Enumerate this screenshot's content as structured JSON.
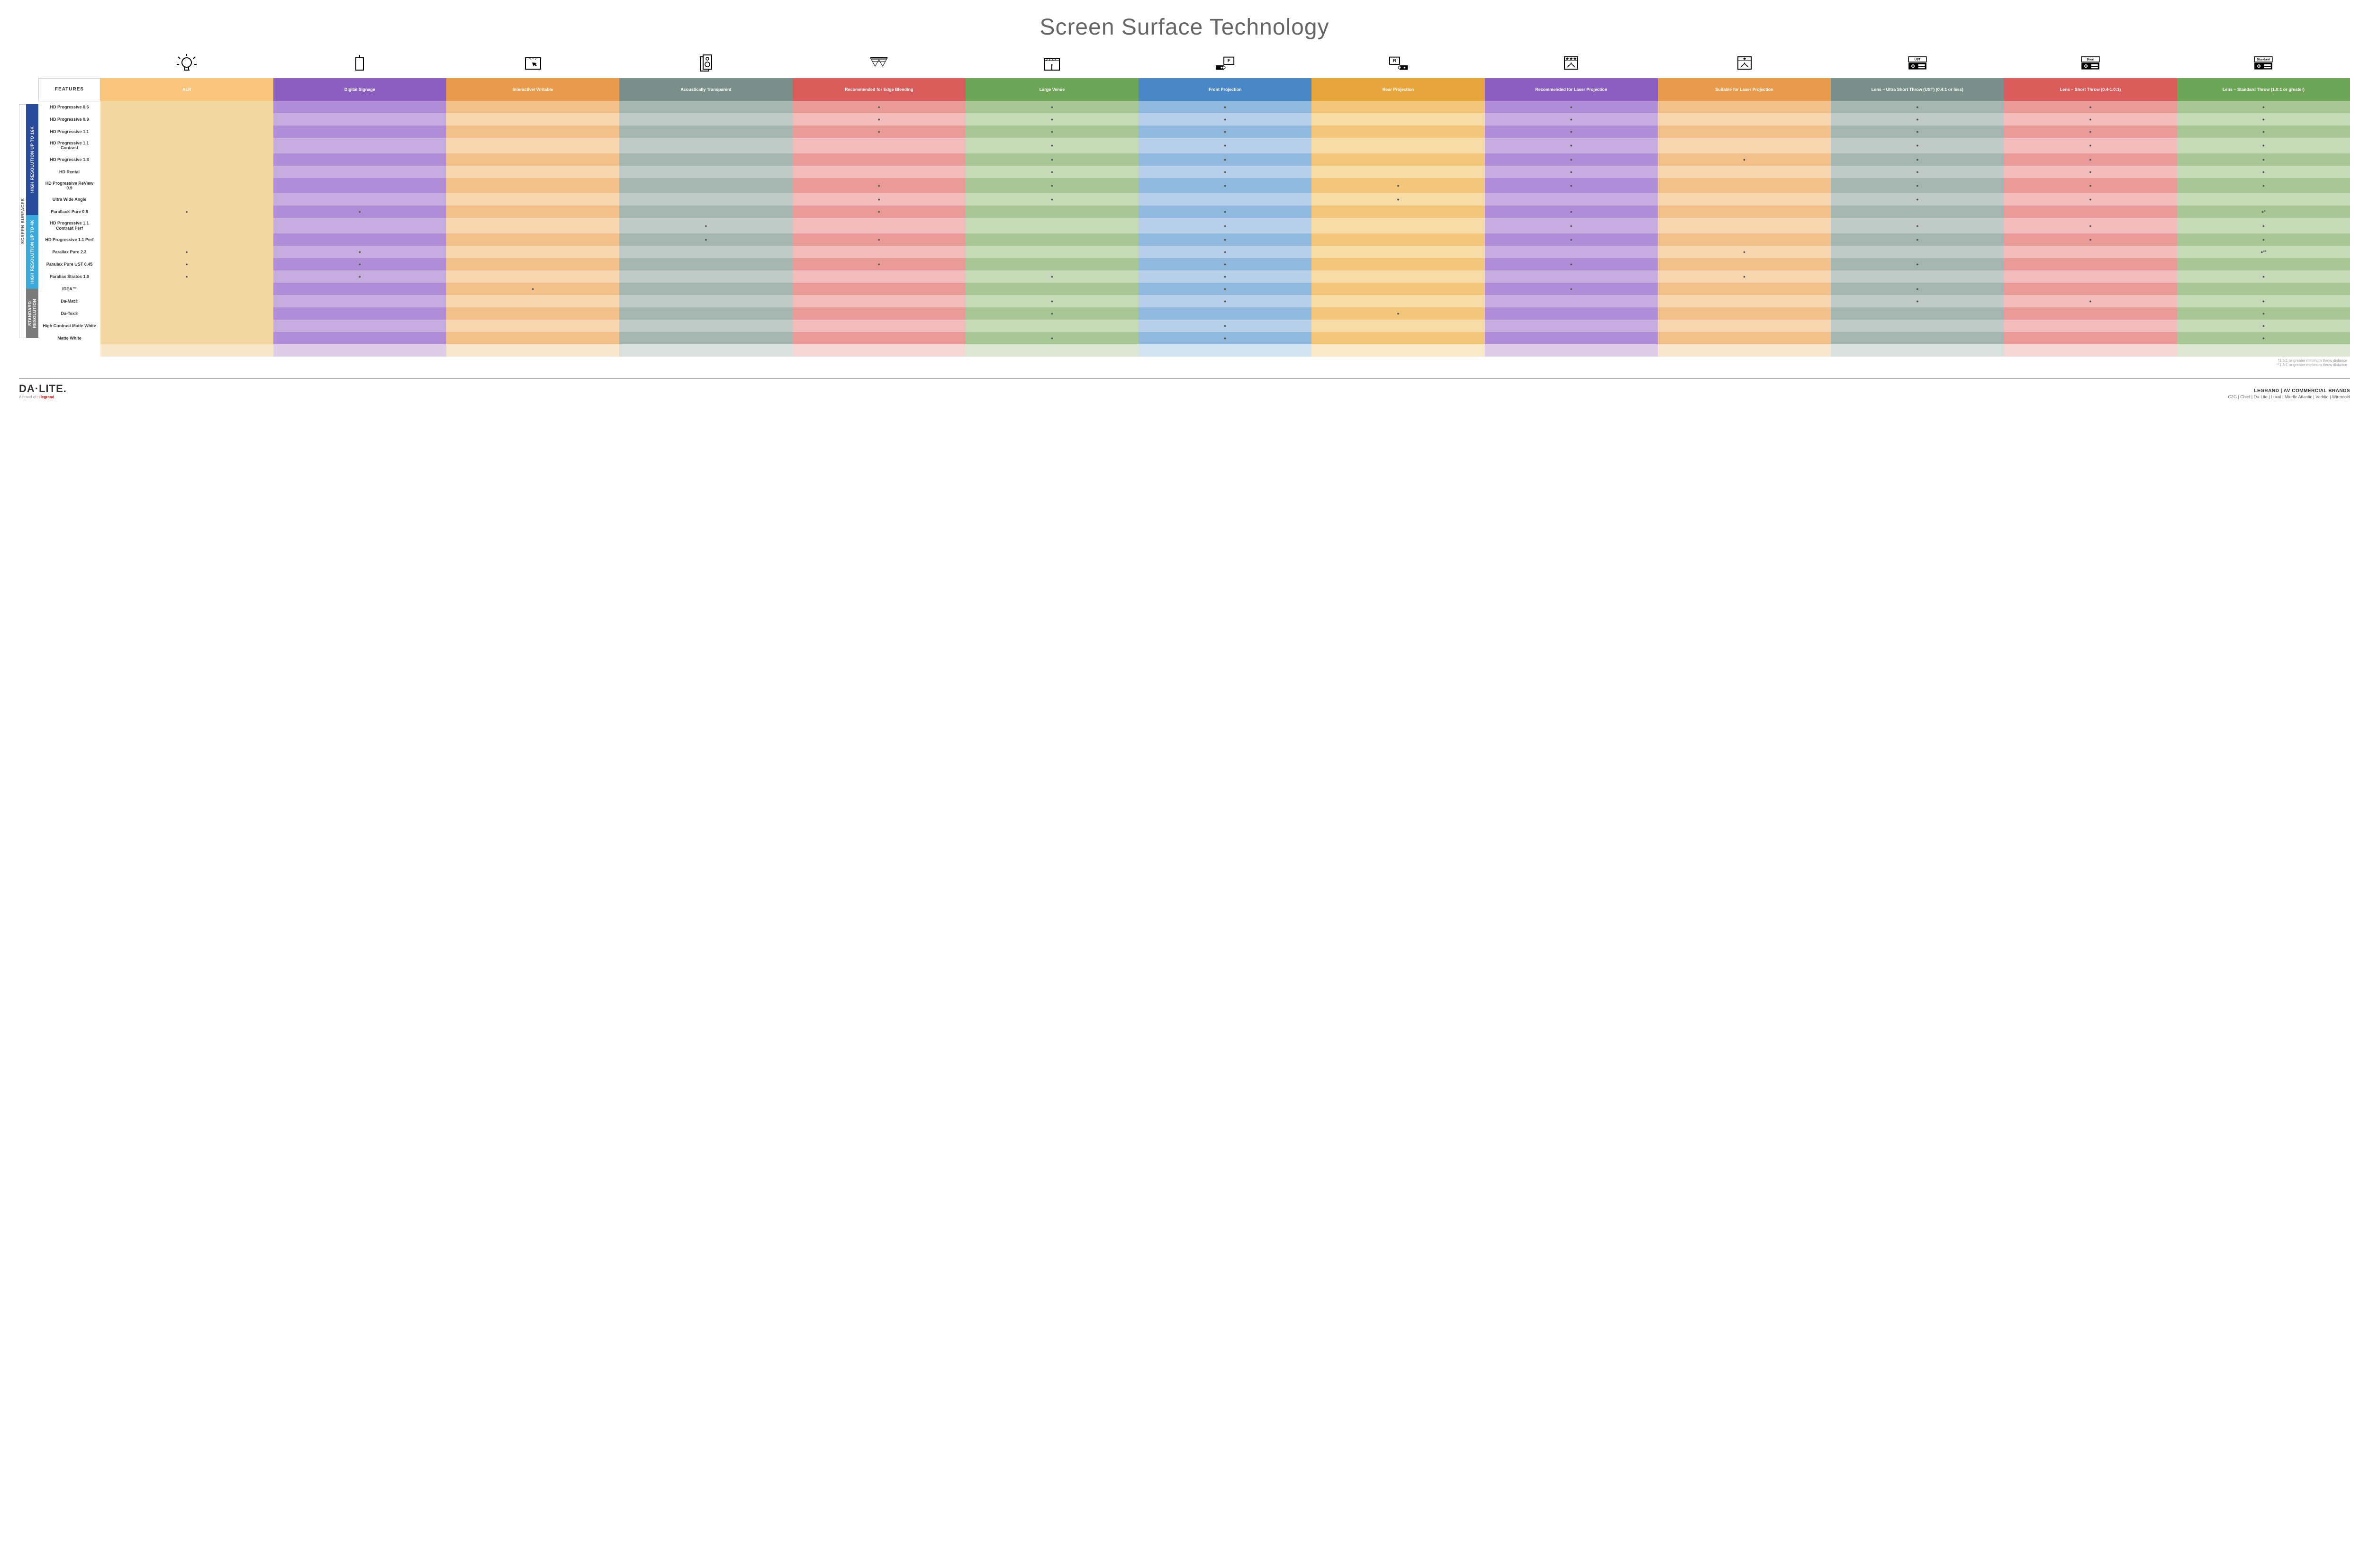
{
  "title": "Screen Surface Technology",
  "features_label": "FEATURES",
  "side_label": "SCREEN SURFACES",
  "categories": [
    {
      "label": "HIGH RESOLUTION UP TO 16K",
      "color": "#2a4b9b",
      "rows": 9
    },
    {
      "label": "HIGH RESOLUTION UP TO 4K",
      "color": "#3aa8d8",
      "rows": 6
    },
    {
      "label": "STANDARD RESOLUTION",
      "color": "#7a7a7a",
      "rows": 4
    }
  ],
  "columns": [
    {
      "label": "ALR",
      "colors": [
        "#f7c67a",
        "#f3d7a2"
      ],
      "icon": "bulb"
    },
    {
      "label": "Digital Signage",
      "colors": [
        "#8a5fbf",
        "#b08dd6",
        "#c7addf"
      ],
      "icon": "signage"
    },
    {
      "label": "Interactive/ Writable",
      "colors": [
        "#e89b4c",
        "#f3c08b",
        "#f7d7b0"
      ],
      "icon": "touch"
    },
    {
      "label": "Acoustically Transparent",
      "colors": [
        "#7a8f8a",
        "#a5b5b0",
        "#c0cbc7"
      ],
      "icon": "speaker"
    },
    {
      "label": "Recommended for Edge Blending",
      "colors": [
        "#d95b5b",
        "#eb9a9a",
        "#f3bcbc"
      ],
      "icon": "blend"
    },
    {
      "label": "Large Venue",
      "colors": [
        "#6fa557",
        "#a7c795",
        "#c6dab9"
      ],
      "icon": "venue"
    },
    {
      "label": "Front Projection",
      "colors": [
        "#4a88c7",
        "#91b8dd",
        "#b7cfe8"
      ],
      "icon": "front"
    },
    {
      "label": "Rear Projection",
      "colors": [
        "#e6a63c",
        "#f3c67a",
        "#f7dba6"
      ],
      "icon": "rear"
    },
    {
      "label": "Recommended for Laser Projection",
      "colors": [
        "#8a5fbf",
        "#b08dd6",
        "#c7addf"
      ],
      "icon": "laser-rec"
    },
    {
      "label": "Suitable for Laser Projection",
      "colors": [
        "#e89b4c",
        "#f3c08b",
        "#f7d7b0"
      ],
      "icon": "laser-suit"
    },
    {
      "label": "Lens – Ultra Short Throw (UST) (0.4:1 or less)",
      "colors": [
        "#7a8f8a",
        "#a5b5b0",
        "#c0cbc7"
      ],
      "icon": "ust"
    },
    {
      "label": "Lens – Short Throw (0.4-1.0:1)",
      "colors": [
        "#d95b5b",
        "#eb9a9a",
        "#f3bcbc"
      ],
      "icon": "short"
    },
    {
      "label": "Lens – Standard Throw (1.0:1 or greater)",
      "colors": [
        "#6fa557",
        "#a7c795",
        "#c6dab9"
      ],
      "icon": "standard"
    }
  ],
  "rows": [
    {
      "label": "HD Progressive 0.6",
      "dots": [
        "",
        "",
        "",
        "",
        "●",
        "●",
        "●",
        "",
        "●",
        "",
        "●",
        "●",
        "●"
      ]
    },
    {
      "label": "HD Progressive 0.9",
      "dots": [
        "",
        "",
        "",
        "",
        "●",
        "●",
        "●",
        "",
        "●",
        "",
        "●",
        "●",
        "●"
      ]
    },
    {
      "label": "HD Progressive 1.1",
      "dots": [
        "",
        "",
        "",
        "",
        "●",
        "●",
        "●",
        "",
        "●",
        "",
        "●",
        "●",
        "●"
      ]
    },
    {
      "label": "HD Progressive 1.1 Contrast",
      "dots": [
        "",
        "",
        "",
        "",
        "",
        "●",
        "●",
        "",
        "●",
        "",
        "●",
        "●",
        "●"
      ]
    },
    {
      "label": "HD Progressive 1.3",
      "dots": [
        "",
        "",
        "",
        "",
        "",
        "●",
        "●",
        "",
        "●",
        "●",
        "●",
        "●",
        "●"
      ]
    },
    {
      "label": "HD Rental",
      "dots": [
        "",
        "",
        "",
        "",
        "",
        "●",
        "●",
        "",
        "●",
        "",
        "●",
        "●",
        "●"
      ]
    },
    {
      "label": "HD Progressive ReView 0.9",
      "dots": [
        "",
        "",
        "",
        "",
        "●",
        "●",
        "●",
        "●",
        "●",
        "",
        "●",
        "●",
        "●"
      ]
    },
    {
      "label": "Ultra Wide Angle",
      "dots": [
        "",
        "",
        "",
        "",
        "●",
        "●",
        "",
        "●",
        "",
        "",
        "●",
        "●",
        ""
      ]
    },
    {
      "label": "Parallax® Pure 0.8",
      "dots": [
        "●",
        "●",
        "",
        "",
        "●",
        "",
        "●",
        "",
        "●",
        "",
        "",
        "",
        "●*"
      ]
    },
    {
      "label": "HD Progressive 1.1 Contrast Perf",
      "dots": [
        "",
        "",
        "",
        "●",
        "",
        "",
        "●",
        "",
        "●",
        "",
        "●",
        "●",
        "●"
      ]
    },
    {
      "label": "HD Progressive 1.1 Perf",
      "dots": [
        "",
        "",
        "",
        "●",
        "●",
        "",
        "●",
        "",
        "●",
        "",
        "●",
        "●",
        "●"
      ]
    },
    {
      "label": "Parallax Pure 2.3",
      "dots": [
        "●",
        "●",
        "",
        "",
        "",
        "",
        "●",
        "",
        "",
        "●",
        "",
        "",
        "●**"
      ]
    },
    {
      "label": "Parallax Pure UST 0.45",
      "dots": [
        "●",
        "●",
        "",
        "",
        "●",
        "",
        "●",
        "",
        "●",
        "",
        "●",
        "",
        ""
      ]
    },
    {
      "label": "Parallax Stratos 1.0",
      "dots": [
        "●",
        "●",
        "",
        "",
        "",
        "●",
        "●",
        "",
        "",
        "●",
        "",
        "",
        "●"
      ]
    },
    {
      "label": "IDEA™",
      "dots": [
        "",
        "",
        "●",
        "",
        "",
        "",
        "●",
        "",
        "●",
        "",
        "●",
        "",
        ""
      ]
    },
    {
      "label": "Da-Mat®",
      "dots": [
        "",
        "",
        "",
        "",
        "",
        "●",
        "●",
        "",
        "",
        "",
        "●",
        "●",
        "●"
      ]
    },
    {
      "label": "Da-Tex®",
      "dots": [
        "",
        "",
        "",
        "",
        "",
        "●",
        "",
        "●",
        "",
        "",
        "",
        "",
        "●"
      ]
    },
    {
      "label": "High Contrast Matte White",
      "dots": [
        "",
        "",
        "",
        "",
        "",
        "",
        "●",
        "",
        "",
        "",
        "",
        "",
        "●"
      ]
    },
    {
      "label": "Matte White",
      "dots": [
        "",
        "",
        "",
        "",
        "",
        "●",
        "●",
        "",
        "",
        "",
        "",
        "",
        "●"
      ]
    }
  ],
  "footnotes": [
    "*1.5:1 or greater minimum throw distance",
    "**1.8:1 or greater minimum throw distance"
  ],
  "brand": {
    "name": "DA·LITE.",
    "sub_prefix": "A brand of ",
    "sub_brand": "legrand"
  },
  "right_footer": {
    "top": "LEGRAND | AV COMMERCIAL BRANDS",
    "brands": [
      "C2G",
      "Chief",
      "Da-Lite",
      "Luxul",
      "Middle Atlantic",
      "Vaddio",
      "Wiremold"
    ]
  },
  "proj_labels": {
    "ust": "UST",
    "short": "Short",
    "standard": "Standard"
  }
}
